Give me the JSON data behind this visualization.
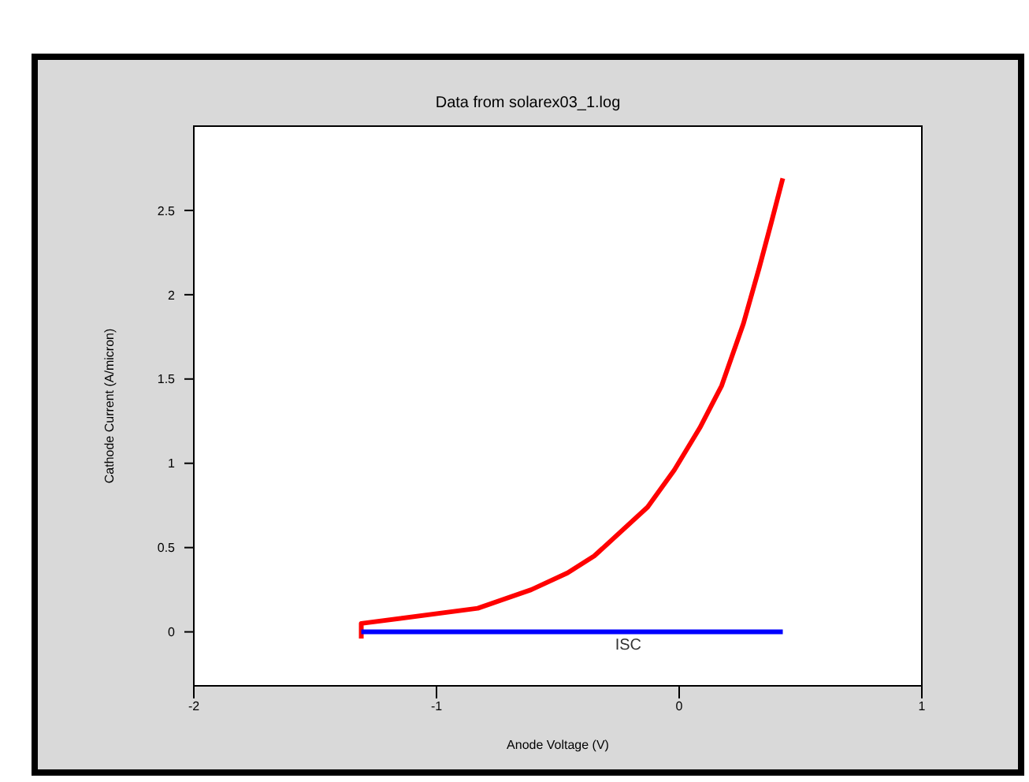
{
  "chart_data": {
    "type": "line",
    "title": "Data from solarex03_1.log",
    "xlabel": "Anode Voltage (V)",
    "ylabel": "Cathode Current (A/micron)",
    "series": [
      {
        "color": "#ff0000",
        "x": [
          -1.31,
          -1.31,
          -0.83,
          -0.61,
          -0.46,
          -0.35,
          -0.13,
          -0.02,
          0.085,
          0.175,
          0.265,
          0.33,
          0.38,
          0.427
        ],
        "values": [
          -0.04,
          0.05,
          0.14,
          0.25,
          0.35,
          0.45,
          0.74,
          0.96,
          1.21,
          1.46,
          1.83,
          2.16,
          2.43,
          2.69
        ]
      },
      {
        "color": "#0000ff",
        "x": [
          -1.31,
          0.427
        ],
        "values": [
          0,
          0
        ]
      }
    ],
    "annotations": [
      {
        "text": "ISC",
        "x": -0.21,
        "y": 0
      }
    ],
    "xlim": [
      -2,
      1
    ],
    "xticks": [
      -2,
      -1,
      0,
      1
    ],
    "ylim": [
      -0.32,
      3
    ],
    "yticks": [
      0,
      0.5,
      1,
      1.5,
      2,
      2.5
    ],
    "legend": false,
    "marker": "none",
    "line_style": "solid"
  }
}
